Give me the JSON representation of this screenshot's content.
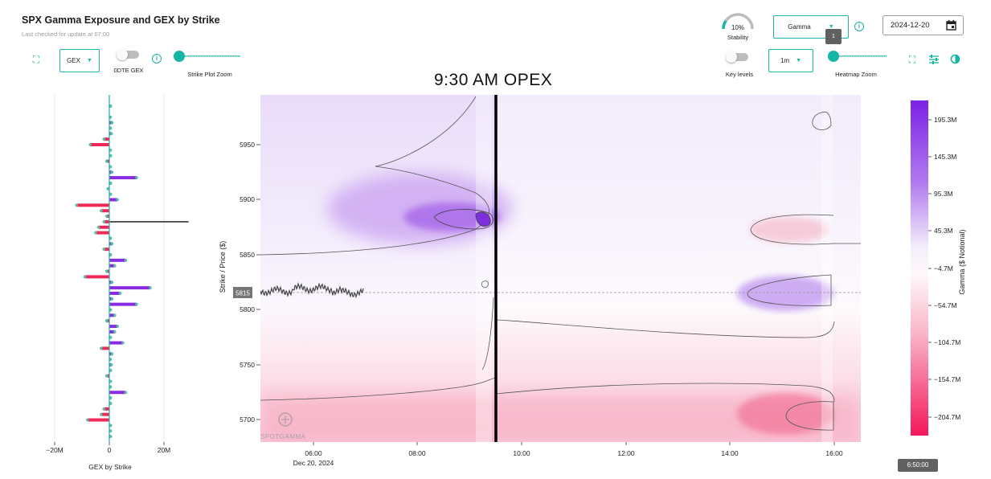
{
  "header": {
    "title": "SPX Gamma Exposure and GEX by Strike",
    "subtitle": "Last checked for update at 07:00"
  },
  "left_controls": {
    "gex_select": "GEX",
    "odte_label": "0DTE GEX",
    "strike_zoom_label": "Strike Plot Zoom"
  },
  "right_controls": {
    "stability_value": "10%",
    "stability_label": "Stability",
    "gamma_select": "Gamma",
    "date_value": "2024-12-20",
    "key_levels_label": "Key levels",
    "interval_select": "1m",
    "heatmap_zoom_label": "Heatmap Zoom",
    "heatmap_zoom_value": "1"
  },
  "annotation": {
    "opex_text": "9:30 AM OPEX"
  },
  "gex_chart": {
    "xlabel": "GEX by Strike",
    "x_ticks": [
      "−20M",
      "0",
      "20M"
    ]
  },
  "heatmap": {
    "ylabel": "Strike / Price ($)",
    "y_ticks": [
      "5950",
      "5900",
      "5850",
      "5800",
      "5750",
      "5700"
    ],
    "x_ticks": [
      "06:00",
      "08:00",
      "10:00",
      "12:00",
      "14:00",
      "16:00"
    ],
    "date_label": "Dec 20, 2024",
    "price_marker": "5815",
    "watermark": "SPOTGAMMA"
  },
  "colorbar": {
    "label": "Gamma ($ Notional)",
    "ticks": [
      "195.3M",
      "145.3M",
      "95.3M",
      "45.3M",
      "−4.7M",
      "−54.7M",
      "−104.7M",
      "−154.7M",
      "−204.7M"
    ]
  },
  "time_badge": "6:50:00",
  "colors": {
    "accent": "#16b5a5",
    "positive": "#8a2be2",
    "negative": "#f0285a"
  },
  "chart_data": {
    "type": "bar",
    "title": "GEX by Strike",
    "xlabel": "GEX by Strike",
    "ylabel": "Strike / Price ($)",
    "xlim": [
      -20,
      30
    ],
    "strikes": [
      5985,
      5975,
      5970,
      5965,
      5960,
      5955,
      5950,
      5945,
      5940,
      5935,
      5930,
      5925,
      5920,
      5915,
      5910,
      5905,
      5900,
      5895,
      5890,
      5885,
      5880,
      5875,
      5870,
      5865,
      5860,
      5855,
      5850,
      5845,
      5840,
      5835,
      5830,
      5825,
      5820,
      5815,
      5810,
      5805,
      5800,
      5795,
      5790,
      5785,
      5780,
      5775,
      5770,
      5765,
      5760,
      5755,
      5750,
      5745,
      5740,
      5735,
      5730,
      5725,
      5720,
      5715,
      5710,
      5705,
      5700,
      5695,
      5690,
      5685
    ],
    "series": [
      {
        "name": "GEX ($M)",
        "values": [
          0.5,
          0.3,
          1,
          0.5,
          0.8,
          -2,
          -7,
          0.3,
          0.5,
          -1,
          0.4,
          1,
          10,
          0.5,
          -0.5,
          0.5,
          3,
          -12,
          -3,
          -1,
          -2,
          -4,
          -5,
          0.5,
          1,
          -2,
          0.5,
          6,
          2,
          -1,
          -9,
          1,
          15,
          4,
          1,
          10,
          0.5,
          2,
          -1,
          3,
          2,
          0.5,
          5,
          -3,
          1,
          0.3,
          0.8,
          0.5,
          -1,
          0.5,
          0.3,
          6,
          0.5,
          0.5,
          -2,
          -3,
          -8,
          0.5,
          0.3,
          0.5
        ]
      }
    ]
  }
}
